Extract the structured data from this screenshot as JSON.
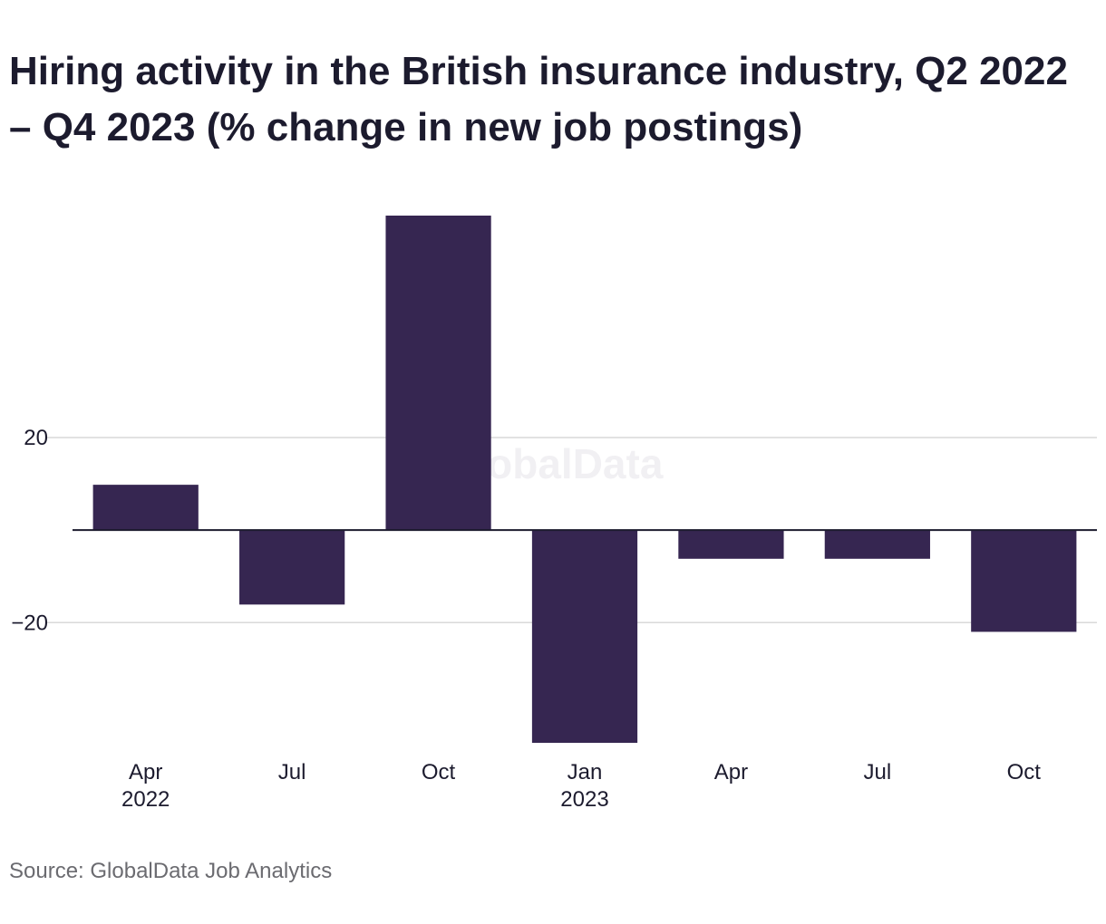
{
  "chart_data": {
    "type": "bar",
    "title": "Hiring activity in the British insurance industry, Q2 2022 – Q4 2023 (% change in new job postings)",
    "categories": [
      "Apr 2022",
      "Jul",
      "Oct",
      "Jan 2023",
      "Apr",
      "Jul",
      "Oct"
    ],
    "tick_labels": [
      [
        "Apr",
        "2022"
      ],
      [
        "Jul",
        ""
      ],
      [
        "Oct",
        ""
      ],
      [
        "Jan",
        "2023"
      ],
      [
        "Apr",
        ""
      ],
      [
        "Jul",
        ""
      ],
      [
        "Oct",
        ""
      ]
    ],
    "values": [
      9.8,
      -16.1,
      68.0,
      -46.0,
      -6.2,
      -6.2,
      -22.0
    ],
    "xlabel": "",
    "ylabel": "",
    "ylim": [
      -46,
      68
    ],
    "yticks": [
      20,
      -20
    ],
    "ytick_labels": [
      "20",
      "−20"
    ],
    "grid": true,
    "bar_color": "#362651",
    "watermark": "GlobalData",
    "source": "Source: GlobalData Job Analytics"
  }
}
